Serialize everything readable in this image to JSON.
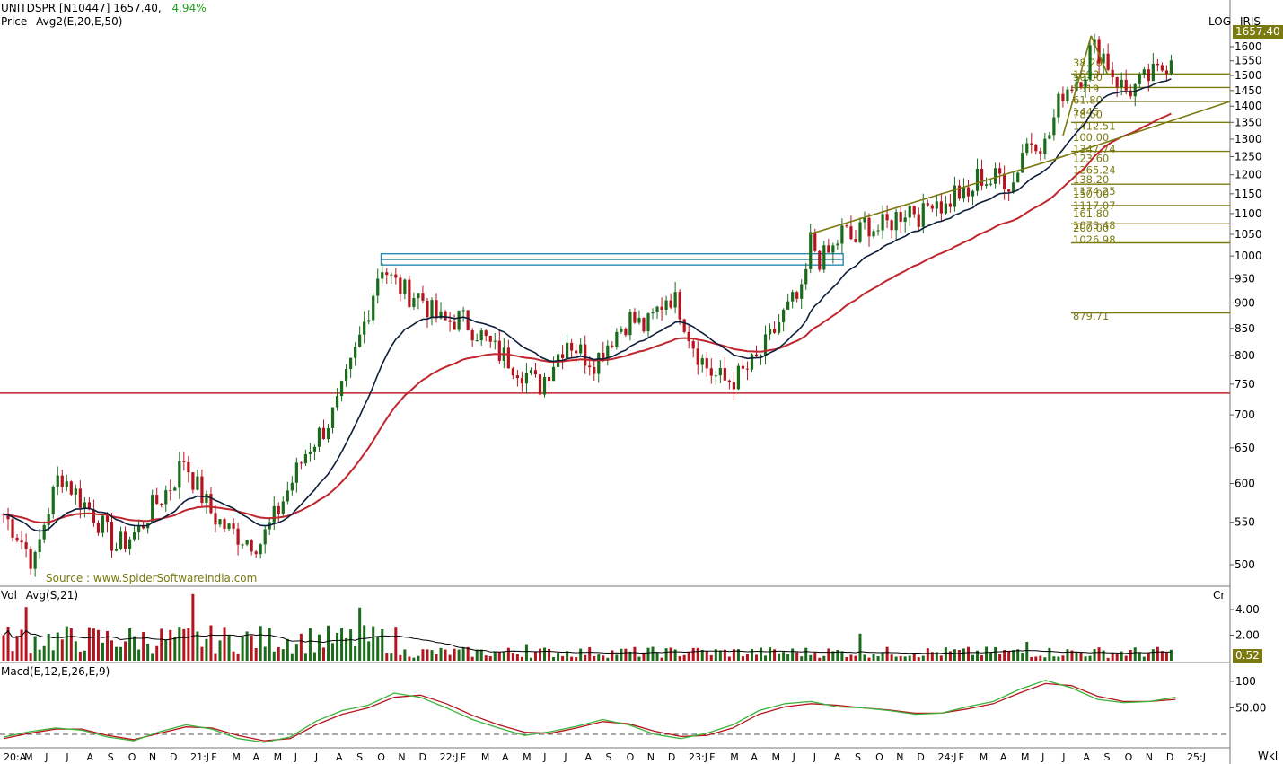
{
  "header": {
    "symbol": "UNITDSPR [N10447]",
    "last": "1657.40,",
    "change_pct": "4.94%",
    "line2_label": "Price",
    "line2_indicator": "Avg2(E,20,E,50)"
  },
  "top_right": {
    "log": "LOG",
    "iris": "IRIS"
  },
  "last_price_box": "1657.40",
  "source": "Source : www.SpiderSoftwareIndia.com",
  "volume_panel": {
    "label": "Vol",
    "indicator": "Avg(S,21)",
    "unit": "Cr",
    "last_box": "0.52"
  },
  "macd_panel": {
    "label": "Macd(E,12,E,26,E,9)"
  },
  "timeframe": "Wkl",
  "colors": {
    "up": "#1a6b1a",
    "down": "#b5141e",
    "ema20": "#0d1d3a",
    "ema50": "#c0262d",
    "horizontal": "#c0262d",
    "fib": "#7a7a10",
    "box": "#2a8ab0",
    "macd": "#3ab33a",
    "signal": "#b5141e"
  },
  "chart_data": [
    {
      "type": "candlestick",
      "title": "UNITDSPR [N10447]",
      "scale": "log",
      "ylim": [
        470,
        1700
      ],
      "y_ticks": [
        500,
        550,
        600,
        650,
        700,
        750,
        800,
        850,
        900,
        950,
        1000,
        1050,
        1100,
        1150,
        1200,
        1250,
        1300,
        1350,
        1400,
        1450,
        1500,
        1550,
        1600
      ],
      "x_ticks": [
        "20:A",
        "M",
        "J",
        "J",
        "A",
        "S",
        "O",
        "N",
        "D",
        "21:J",
        "F",
        "M",
        "A",
        "M",
        "J",
        "J",
        "A",
        "S",
        "O",
        "N",
        "D",
        "22:J",
        "F",
        "M",
        "A",
        "M",
        "J",
        "J",
        "A",
        "S",
        "O",
        "N",
        "D",
        "23:J",
        "F",
        "M",
        "A",
        "M",
        "J",
        "J",
        "A",
        "S",
        "O",
        "N",
        "D",
        "24:J",
        "F",
        "M",
        "A",
        "M",
        "J",
        "J",
        "A",
        "S",
        "O",
        "N",
        "D",
        "25:J"
      ],
      "price_path": [
        {
          "x": 0,
          "y": 560
        },
        {
          "x": 6,
          "y": 530
        },
        {
          "x": 11,
          "y": 500
        },
        {
          "x": 14,
          "y": 545
        },
        {
          "x": 20,
          "y": 615
        },
        {
          "x": 26,
          "y": 585
        },
        {
          "x": 32,
          "y": 560
        },
        {
          "x": 40,
          "y": 520
        },
        {
          "x": 48,
          "y": 540
        },
        {
          "x": 52,
          "y": 565
        },
        {
          "x": 60,
          "y": 600
        },
        {
          "x": 64,
          "y": 635
        },
        {
          "x": 68,
          "y": 600
        },
        {
          "x": 74,
          "y": 560
        },
        {
          "x": 80,
          "y": 540
        },
        {
          "x": 86,
          "y": 530
        },
        {
          "x": 91,
          "y": 525
        },
        {
          "x": 96,
          "y": 555
        },
        {
          "x": 102,
          "y": 600
        },
        {
          "x": 108,
          "y": 650
        },
        {
          "x": 114,
          "y": 680
        },
        {
          "x": 118,
          "y": 710
        },
        {
          "x": 120,
          "y": 735
        },
        {
          "x": 124,
          "y": 790
        },
        {
          "x": 128,
          "y": 860
        },
        {
          "x": 131,
          "y": 920
        },
        {
          "x": 134,
          "y": 985
        },
        {
          "x": 138,
          "y": 945
        },
        {
          "x": 143,
          "y": 920
        },
        {
          "x": 148,
          "y": 915
        },
        {
          "x": 152,
          "y": 880
        },
        {
          "x": 156,
          "y": 860
        },
        {
          "x": 162,
          "y": 870
        },
        {
          "x": 168,
          "y": 845
        },
        {
          "x": 174,
          "y": 810
        },
        {
          "x": 180,
          "y": 790
        },
        {
          "x": 186,
          "y": 765
        },
        {
          "x": 190,
          "y": 745
        },
        {
          "x": 194,
          "y": 780
        },
        {
          "x": 200,
          "y": 830
        },
        {
          "x": 206,
          "y": 800
        },
        {
          "x": 210,
          "y": 790
        },
        {
          "x": 216,
          "y": 835
        },
        {
          "x": 222,
          "y": 870
        },
        {
          "x": 228,
          "y": 850
        },
        {
          "x": 232,
          "y": 885
        },
        {
          "x": 236,
          "y": 920
        },
        {
          "x": 240,
          "y": 890
        },
        {
          "x": 244,
          "y": 830
        },
        {
          "x": 248,
          "y": 790
        },
        {
          "x": 252,
          "y": 765
        },
        {
          "x": 256,
          "y": 755
        },
        {
          "x": 260,
          "y": 760
        },
        {
          "x": 264,
          "y": 775
        },
        {
          "x": 268,
          "y": 795
        },
        {
          "x": 272,
          "y": 830
        },
        {
          "x": 276,
          "y": 870
        },
        {
          "x": 280,
          "y": 900
        },
        {
          "x": 284,
          "y": 915
        },
        {
          "x": 286,
          "y": 1040
        },
        {
          "x": 290,
          "y": 990
        },
        {
          "x": 294,
          "y": 1010
        },
        {
          "x": 298,
          "y": 1060
        },
        {
          "x": 302,
          "y": 1030
        },
        {
          "x": 306,
          "y": 1080
        },
        {
          "x": 310,
          "y": 1060
        },
        {
          "x": 314,
          "y": 1075
        },
        {
          "x": 318,
          "y": 1100
        },
        {
          "x": 322,
          "y": 1120
        },
        {
          "x": 326,
          "y": 1090
        },
        {
          "x": 330,
          "y": 1150
        },
        {
          "x": 334,
          "y": 1110
        },
        {
          "x": 338,
          "y": 1160
        },
        {
          "x": 342,
          "y": 1130
        },
        {
          "x": 346,
          "y": 1200
        },
        {
          "x": 350,
          "y": 1180
        },
        {
          "x": 354,
          "y": 1200
        },
        {
          "x": 358,
          "y": 1170
        },
        {
          "x": 362,
          "y": 1280
        },
        {
          "x": 366,
          "y": 1305
        },
        {
          "x": 370,
          "y": 1280
        },
        {
          "x": 372,
          "y": 1340
        },
        {
          "x": 376,
          "y": 1450
        },
        {
          "x": 380,
          "y": 1480
        },
        {
          "x": 384,
          "y": 1520
        },
        {
          "x": 386,
          "y": 1600
        },
        {
          "x": 390,
          "y": 1580
        },
        {
          "x": 394,
          "y": 1500
        },
        {
          "x": 398,
          "y": 1450
        },
        {
          "x": 402,
          "y": 1460
        },
        {
          "x": 406,
          "y": 1490
        },
        {
          "x": 410,
          "y": 1510
        },
        {
          "x": 414,
          "y": 1560
        },
        {
          "x": 416,
          "y": 1657
        }
      ],
      "horizontal_line": 735,
      "resistance_box": [
        980,
        1005
      ],
      "fib_levels": [
        {
          "pct": "38.20",
          "price": "1593"
        },
        {
          "pct": "50.00",
          "price": "1519"
        },
        {
          "pct": "61.80",
          "price": "1445"
        },
        {
          "pct": "78.60",
          "price": "1412.51"
        },
        {
          "pct": "100.00",
          "price": "1347.74"
        },
        {
          "pct": "123.60",
          "price": "1265.24"
        },
        {
          "pct": "138.20",
          "price": "1174.25"
        },
        {
          "pct": "150.00",
          "price": "1117.07"
        },
        {
          "pct": "161.80",
          "price": "1073.48"
        },
        {
          "pct": "200.00",
          "price": "1026.98"
        },
        {
          "pct": "",
          "price": "879.71"
        }
      ],
      "fib_lines": [
        1505,
        1460,
        1415,
        1350,
        1265,
        1175,
        1120,
        1075,
        1030,
        880
      ]
    },
    {
      "type": "bar",
      "title": "Vol Avg(S,21)",
      "y_ticks": [
        4.0,
        2.0
      ],
      "last_value": 0.52
    },
    {
      "type": "line",
      "title": "Macd(E,12,E,26,E,9)",
      "y_ticks": [
        100,
        50.0
      ],
      "series": [
        {
          "values": [
            -5,
            5,
            12,
            8,
            -5,
            -12,
            5,
            18,
            10,
            -8,
            -15,
            -5,
            25,
            45,
            55,
            78,
            70,
            50,
            28,
            12,
            -2,
            5,
            15,
            28,
            18,
            0,
            -8,
            2,
            18,
            45,
            58,
            62,
            52,
            50,
            45,
            38,
            40,
            52,
            62,
            85,
            102,
            88,
            66,
            60,
            62,
            70
          ]
        },
        {
          "values": [
            -8,
            2,
            10,
            10,
            -2,
            -10,
            2,
            14,
            12,
            -2,
            -12,
            -8,
            18,
            38,
            50,
            70,
            74,
            58,
            36,
            18,
            4,
            2,
            12,
            24,
            20,
            6,
            -4,
            -2,
            12,
            38,
            52,
            58,
            55,
            50,
            46,
            40,
            40,
            48,
            58,
            78,
            96,
            92,
            72,
            62,
            62,
            66
          ]
        }
      ]
    }
  ]
}
